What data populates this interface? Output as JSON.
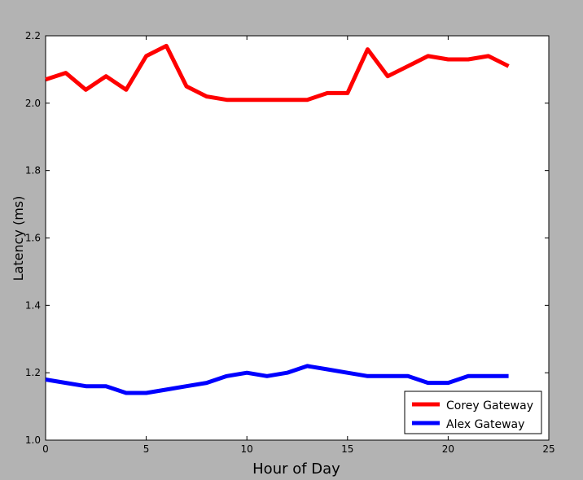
{
  "chart_data": {
    "type": "line",
    "title": "",
    "xlabel": "Hour of Day",
    "ylabel": "Latency (ms)",
    "xlim": [
      0,
      25
    ],
    "ylim": [
      1.0,
      2.2
    ],
    "x_ticks": [
      0,
      5,
      10,
      15,
      20,
      25
    ],
    "y_ticks": [
      1.0,
      1.2,
      1.4,
      1.6,
      1.8,
      2.0,
      2.2
    ],
    "x_tick_labels": [
      "0",
      "5",
      "10",
      "15",
      "20",
      "25"
    ],
    "y_tick_labels": [
      "1.0",
      "1.2",
      "1.4",
      "1.6",
      "1.8",
      "2.0",
      "2.2"
    ],
    "grid": false,
    "legend_position": "lower-right",
    "x": [
      0,
      1,
      2,
      3,
      4,
      5,
      6,
      7,
      8,
      9,
      10,
      11,
      12,
      13,
      14,
      15,
      16,
      17,
      18,
      19,
      20,
      21,
      22,
      23
    ],
    "series": [
      {
        "name": "Corey Gateway",
        "color": "#ff0000",
        "values": [
          2.07,
          2.09,
          2.04,
          2.08,
          2.04,
          2.14,
          2.17,
          2.05,
          2.02,
          2.01,
          2.01,
          2.01,
          2.01,
          2.01,
          2.03,
          2.03,
          2.16,
          2.08,
          2.11,
          2.14,
          2.13,
          2.13,
          2.14,
          2.11
        ]
      },
      {
        "name": "Alex Gateway",
        "color": "#0000ff",
        "values": [
          1.18,
          1.17,
          1.16,
          1.16,
          1.14,
          1.14,
          1.15,
          1.16,
          1.17,
          1.19,
          1.2,
          1.19,
          1.2,
          1.22,
          1.21,
          1.2,
          1.19,
          1.19,
          1.19,
          1.17,
          1.17,
          1.19,
          1.19,
          1.19
        ]
      }
    ]
  }
}
